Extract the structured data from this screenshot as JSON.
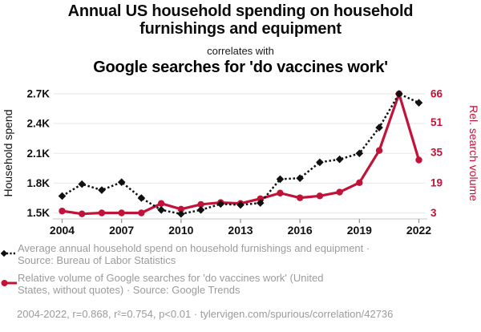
{
  "header": {
    "title_line1": "Annual US household spending on household",
    "title_line2": "furnishings and equipment",
    "connector": "correlates with",
    "red_title": "Google searches for 'do vaccines work'"
  },
  "colors": {
    "black_series": "#111111",
    "red_series": "#c11339",
    "grid": "#ebebeb",
    "axis_line": "#d0d0d0",
    "tick_mark": "#999999",
    "axis_text": "#111111",
    "legend_text": "#9b9b9b"
  },
  "chart_data": {
    "type": "line",
    "x_label_ticks": [
      2004,
      2007,
      2010,
      2013,
      2016,
      2019,
      2022
    ],
    "x": [
      2004,
      2005,
      2006,
      2007,
      2008,
      2009,
      2010,
      2011,
      2012,
      2013,
      2014,
      2015,
      2016,
      2017,
      2018,
      2019,
      2020,
      2021,
      2022
    ],
    "left_axis": {
      "label": "Household spend",
      "tick_values": [
        1.5,
        1.8,
        2.1,
        2.4,
        2.7
      ],
      "tick_labels": [
        "1.5K",
        "1.8K",
        "2.1K",
        "2.4K",
        "2.7K"
      ],
      "range": [
        1.5,
        2.7
      ]
    },
    "right_axis": {
      "label": "Rel. search volume",
      "tick_values": [
        3,
        19,
        35,
        51,
        66
      ],
      "tick_labels": [
        "3",
        "19",
        "35",
        "51",
        "66"
      ],
      "range": [
        3,
        66
      ]
    },
    "series": [
      {
        "name": "household-spend",
        "axis": "left",
        "style": "dashed-diamond",
        "legend_line1": "Average annual household spend on household furnishings and equipment ·",
        "legend_line2": "Source: Bureau of Labor Statistics",
        "values": [
          1.67,
          1.79,
          1.73,
          1.81,
          1.65,
          1.53,
          1.49,
          1.53,
          1.59,
          1.58,
          1.6,
          1.84,
          1.85,
          2.01,
          2.04,
          2.1,
          2.36,
          2.7,
          2.61
        ]
      },
      {
        "name": "search-volume",
        "axis": "right",
        "style": "solid-circle",
        "legend_line1": "Relative volume of Google searches for 'do vaccines work' (United",
        "legend_line2": "States, without quotes) · Source: Google Trends",
        "values": [
          4,
          2.5,
          3,
          3,
          3,
          8,
          5,
          7.5,
          8.5,
          8,
          10.5,
          13.5,
          11,
          12,
          14,
          19,
          36,
          66,
          31
        ]
      }
    ],
    "grid": "horizontal",
    "legend_position": "bottom"
  },
  "footer": {
    "text": "2004-2022, r=0.868, r²=0.754, p<0.01 · tylervigen.com/spurious/correlation/42736"
  }
}
